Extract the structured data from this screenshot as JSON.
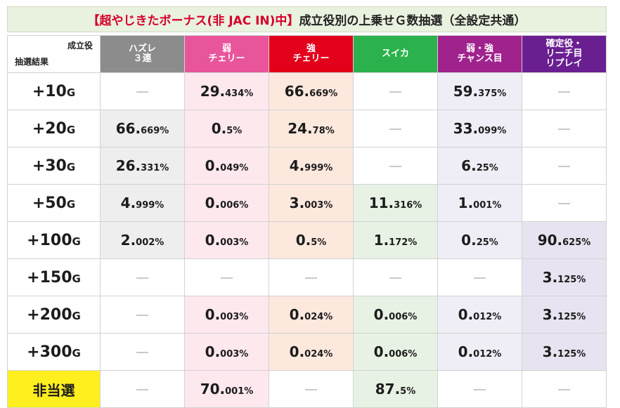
{
  "title": {
    "prefix": "【超やじきたボーナス(非 JAC IN)中】",
    "rest": "成立役別の上乗せＧ数抽選（全設定共通）"
  },
  "header": {
    "corner_top": "成立役",
    "corner_bottom": "抽選結果",
    "columns": [
      {
        "lines": [
          "ハズレ",
          "３連"
        ],
        "bg": "#8c8c8c"
      },
      {
        "lines": [
          "弱",
          "チェリー"
        ],
        "bg": "#e8559b"
      },
      {
        "lines": [
          "強",
          "チェリー"
        ],
        "bg": "#e3001b"
      },
      {
        "lines": [
          "スイカ"
        ],
        "bg": "#2bb24c"
      },
      {
        "lines": [
          "弱・強",
          "チャンス目"
        ],
        "bg": "#a0228d"
      },
      {
        "lines": [
          "確定役・",
          "リーチ目",
          "リプレイ"
        ],
        "bg": "#6a1f91"
      }
    ]
  },
  "column_tints": [
    "#eeeeee",
    "#fde8ee",
    "#fde8de",
    "#e8f2e4",
    "#efeef6",
    "#e7e3f0"
  ],
  "rows": [
    {
      "label": "+10",
      "unit": "G",
      "cells": [
        null,
        [
          "29.",
          "434%"
        ],
        [
          "66.",
          "669%"
        ],
        null,
        [
          "59.",
          "375%"
        ],
        null
      ]
    },
    {
      "label": "+20",
      "unit": "G",
      "cells": [
        [
          "66.",
          "669%"
        ],
        [
          "0.",
          "5%"
        ],
        [
          "24.",
          "78%"
        ],
        null,
        [
          "33.",
          "099%"
        ],
        null
      ]
    },
    {
      "label": "+30",
      "unit": "G",
      "cells": [
        [
          "26.",
          "331%"
        ],
        [
          "0.",
          "049%"
        ],
        [
          "4.",
          "999%"
        ],
        null,
        [
          "6.",
          "25%"
        ],
        null
      ]
    },
    {
      "label": "+50",
      "unit": "G",
      "cells": [
        [
          "4.",
          "999%"
        ],
        [
          "0.",
          "006%"
        ],
        [
          "3.",
          "003%"
        ],
        [
          "11.",
          "316%"
        ],
        [
          "1.",
          "001%"
        ],
        null
      ]
    },
    {
      "label": "+100",
      "unit": "G",
      "cells": [
        [
          "2.",
          "002%"
        ],
        [
          "0.",
          "003%"
        ],
        [
          "0.",
          "5%"
        ],
        [
          "1.",
          "172%"
        ],
        [
          "0.",
          "25%"
        ],
        [
          "90.",
          "625%"
        ]
      ]
    },
    {
      "label": "+150",
      "unit": "G",
      "cells": [
        null,
        null,
        null,
        null,
        null,
        [
          "3.",
          "125%"
        ]
      ]
    },
    {
      "label": "+200",
      "unit": "G",
      "cells": [
        null,
        [
          "0.",
          "003%"
        ],
        [
          "0.",
          "024%"
        ],
        [
          "0.",
          "006%"
        ],
        [
          "0.",
          "012%"
        ],
        [
          "3.",
          "125%"
        ]
      ]
    },
    {
      "label": "+300",
      "unit": "G",
      "cells": [
        null,
        [
          "0.",
          "003%"
        ],
        [
          "0.",
          "024%"
        ],
        [
          "0.",
          "006%"
        ],
        [
          "0.",
          "012%"
        ],
        [
          "3.",
          "125%"
        ]
      ]
    },
    {
      "label": "非当選",
      "unit": "",
      "highlight": "#ffef1f",
      "cells": [
        null,
        [
          "70.",
          "001%"
        ],
        null,
        [
          "87.",
          "5%"
        ],
        null,
        null
      ]
    }
  ]
}
